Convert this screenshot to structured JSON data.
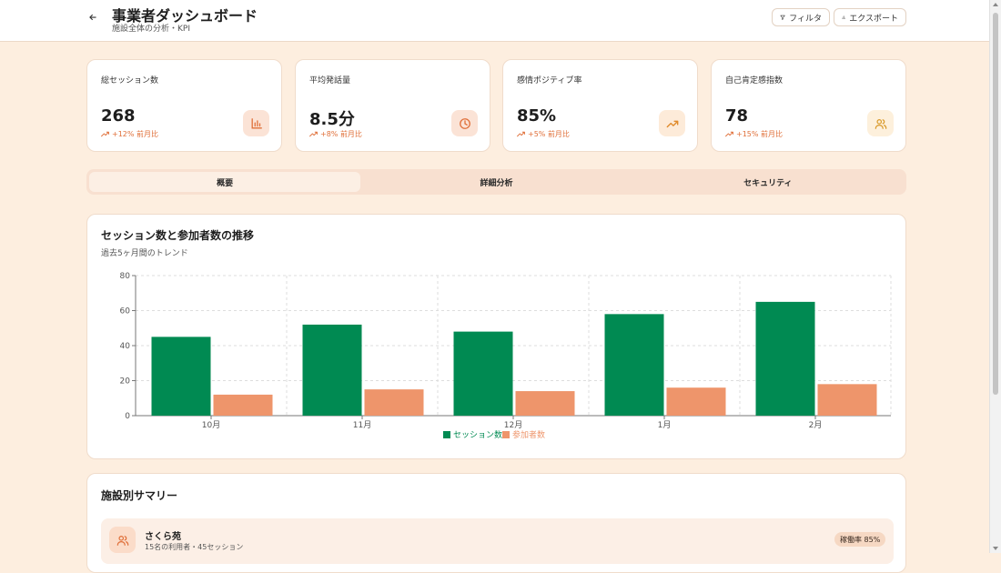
{
  "header": {
    "title": "事業者ダッシュボード",
    "subtitle": "施設全体の分析・KPI",
    "filter_label": "フィルタ",
    "export_label": "エクスポート"
  },
  "kpis": [
    {
      "label": "総セッション数",
      "value": "268",
      "trend": "+12% 前月比",
      "icon": "bar-chart-icon",
      "icon_bg": "#fbe3d6",
      "icon_color": "#e0703a"
    },
    {
      "label": "平均発話量",
      "value": "8.5分",
      "trend": "+8% 前月比",
      "icon": "clock-icon",
      "icon_bg": "#fbe3d6",
      "icon_color": "#e0703a"
    },
    {
      "label": "感情ポジティブ率",
      "value": "85%",
      "trend": "+5% 前月比",
      "icon": "trending-up-icon",
      "icon_bg": "#fdebd9",
      "icon_color": "#e08a2a"
    },
    {
      "label": "自己肯定感指数",
      "value": "78",
      "trend": "+15% 前月比",
      "icon": "users-icon",
      "icon_bg": "#fdf0dc",
      "icon_color": "#d99a2a"
    }
  ],
  "tabs": [
    {
      "label": "概要",
      "active": true
    },
    {
      "label": "詳細分析",
      "active": false
    },
    {
      "label": "セキュリティ",
      "active": false
    }
  ],
  "chart": {
    "title": "セッション数と参加者数の推移",
    "subtitle": "過去5ヶ月間のトレンド"
  },
  "chart_data": {
    "type": "bar",
    "categories": [
      "10月",
      "11月",
      "12月",
      "1月",
      "2月"
    ],
    "series": [
      {
        "name": "セッション数",
        "values": [
          45,
          52,
          48,
          58,
          65
        ],
        "color": "#008a52"
      },
      {
        "name": "参加者数",
        "values": [
          12,
          15,
          14,
          16,
          18
        ],
        "color": "#ee956b"
      }
    ],
    "ylim": [
      0,
      80
    ],
    "yticks": [
      0,
      20,
      40,
      60,
      80
    ],
    "grid": true,
    "legend_position": "bottom-center"
  },
  "summary": {
    "title": "施設別サマリー",
    "facilities": [
      {
        "name": "さくら苑",
        "meta": "15名の利用者・45セッション",
        "badge": "稼働率 85%"
      }
    ]
  },
  "colors": {
    "accent": "#e0703a",
    "background": "#fdeedf"
  }
}
